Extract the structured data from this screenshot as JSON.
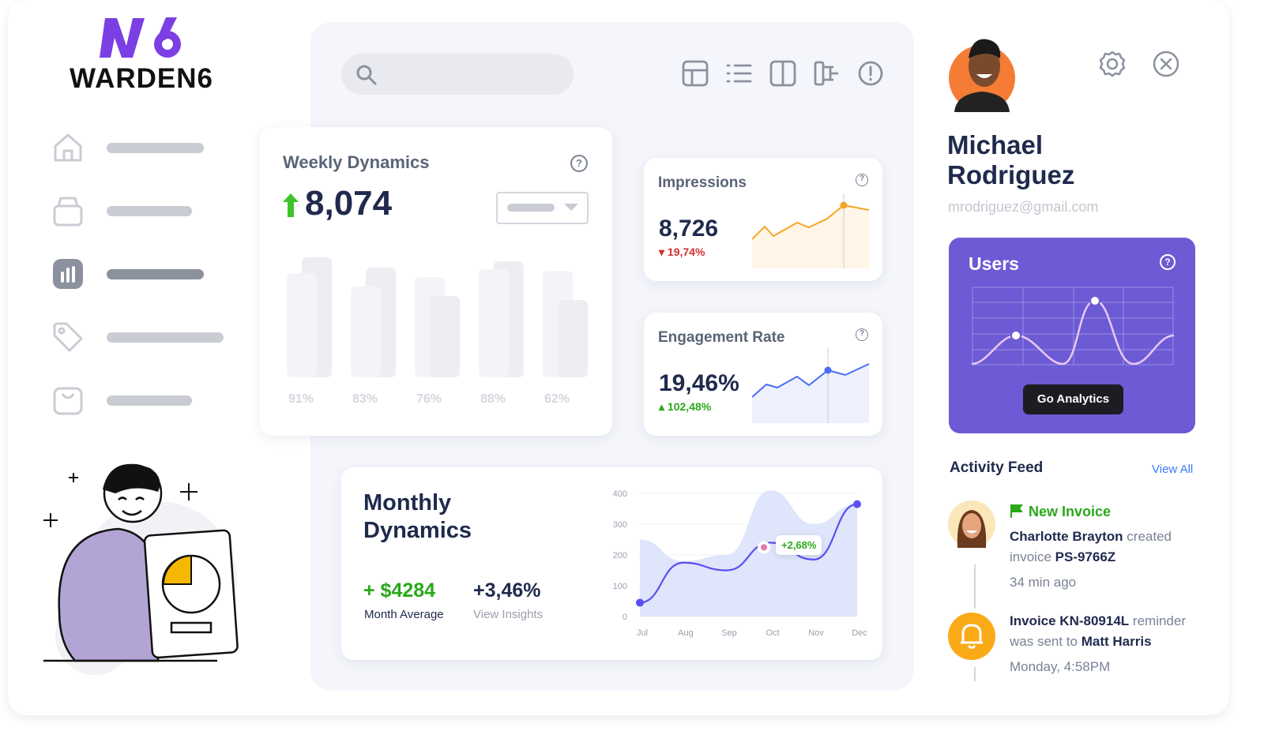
{
  "brand": {
    "logo_mark": "W6",
    "name": "WARDEN6",
    "color": "#7b3fe4"
  },
  "sidebar": {
    "items": [
      {
        "icon": "home-icon"
      },
      {
        "icon": "box-icon"
      },
      {
        "icon": "chart-icon",
        "active": true
      },
      {
        "icon": "tag-icon"
      },
      {
        "icon": "bag-icon"
      }
    ]
  },
  "toolbar": {
    "search_placeholder": "",
    "icons": [
      "grid-icon",
      "list-icon",
      "columns-icon",
      "flow-icon",
      "alert-icon"
    ]
  },
  "weekly": {
    "title": "Weekly Dynamics",
    "value": "8,074",
    "trend": "up",
    "help": "?",
    "bar_labels": [
      "91%",
      "83%",
      "76%",
      "88%",
      "62%"
    ]
  },
  "impressions": {
    "title": "Impressions",
    "value": "8,726",
    "change": "19,74%",
    "trend": "down",
    "color": "#f5a623",
    "help": "?"
  },
  "engagement": {
    "title": "Engagement Rate",
    "value": "19,46%",
    "change": "102,48%",
    "trend": "up",
    "color": "#4a6cf7",
    "help": "?"
  },
  "monthly": {
    "title_line1": "Monthly",
    "title_line2": "Dynamics",
    "average": "+ $4284",
    "average_label": "Month Average",
    "change": "+3,46%",
    "insights_label": "View Insights",
    "tooltip": "+2,68%"
  },
  "chart_data": {
    "type": "line",
    "x": [
      "Jul",
      "Aug",
      "Sep",
      "Oct",
      "Nov",
      "Dec"
    ],
    "yticks": [
      "0",
      "100",
      "200",
      "300",
      "400"
    ],
    "ylim": [
      0,
      400
    ],
    "series": [
      {
        "values": [
          45,
          175,
          150,
          240,
          185,
          365
        ],
        "color": "#5a4ff0"
      },
      {
        "values": [
          250,
          180,
          200,
          410,
          300,
          365
        ],
        "color": "#dfe5fb"
      }
    ]
  },
  "profile": {
    "first_name": "Michael",
    "last_name": "Rodriguez",
    "email": "mrodriguez@gmail.com"
  },
  "users": {
    "title": "Users",
    "help": "?",
    "button": "Go Analytics",
    "color": "#6c5bd4"
  },
  "activity": {
    "title": "Activity Feed",
    "view_all": "View All",
    "items": [
      {
        "tag": "New Invoice",
        "actor": "Charlotte Brayton",
        "verb": " created",
        "line2a": "invoice ",
        "ref": "PS-9766Z",
        "time": "34  min ago"
      },
      {
        "ref": "Invoice KN-80914L",
        "verb": " reminder",
        "line2a": "was sent to ",
        "actor": "Matt Harris",
        "time": "Monday, 4:58PM"
      }
    ]
  }
}
